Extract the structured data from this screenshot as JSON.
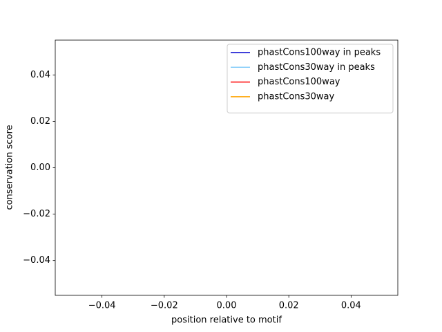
{
  "chart_data": {
    "type": "line",
    "xlabel": "position relative to motif",
    "ylabel": "conservation score",
    "x": [],
    "series": [
      {
        "name": "phastCons100way in peaks",
        "color": "#0000cd",
        "values": []
      },
      {
        "name": "phastCons30way in peaks",
        "color": "#87cefa",
        "values": []
      },
      {
        "name": "phastCons100way",
        "color": "#ff0000",
        "values": []
      },
      {
        "name": "phastCons30way",
        "color": "#ffa500",
        "values": []
      }
    ],
    "xlim": [
      -0.055,
      0.055
    ],
    "ylim": [
      -0.055,
      0.055
    ],
    "xticks": [
      {
        "value": -0.04,
        "label": "−0.04"
      },
      {
        "value": -0.02,
        "label": "−0.02"
      },
      {
        "value": 0,
        "label": "0.00"
      },
      0.02,
      0.04
    ],
    "yticks": [
      {
        "value": -0.04,
        "label": "−0.04"
      },
      {
        "value": -0.02,
        "label": "−0.02"
      },
      {
        "value": 0,
        "label": "0.00"
      },
      0.02,
      0.04
    ],
    "legend": "upper right"
  }
}
